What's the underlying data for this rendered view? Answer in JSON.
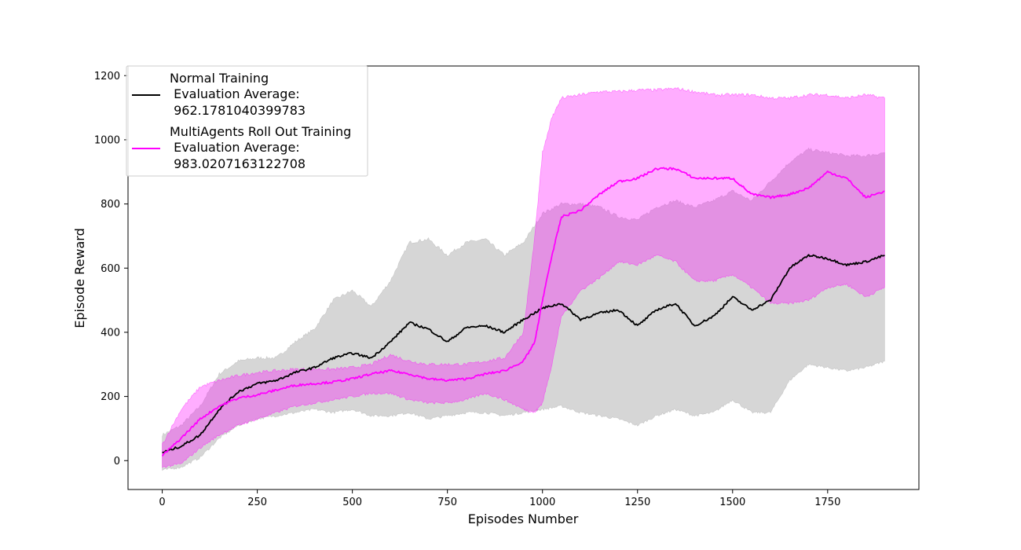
{
  "chart_data": {
    "type": "line",
    "title": "",
    "xlabel": "Episodes Number",
    "ylabel": "Episode Reward",
    "xlim": [
      -90,
      1990
    ],
    "ylim": [
      -90,
      1230
    ],
    "xticks": [
      0,
      250,
      500,
      750,
      1000,
      1250,
      1500,
      1750
    ],
    "yticks": [
      0,
      200,
      400,
      600,
      800,
      1000,
      1200
    ],
    "grid": false,
    "legend_position": "top-left",
    "series": [
      {
        "name": "Normal Training\n Evaluation Average:\n 962.1781040399783",
        "color": "#000000",
        "band_color": "#a9a9a9",
        "x": [
          0,
          50,
          100,
          150,
          200,
          250,
          300,
          350,
          400,
          450,
          500,
          550,
          600,
          650,
          700,
          750,
          800,
          850,
          900,
          950,
          1000,
          1050,
          1100,
          1150,
          1200,
          1250,
          1300,
          1350,
          1400,
          1450,
          1500,
          1550,
          1600,
          1650,
          1700,
          1750,
          1800,
          1850,
          1900
        ],
        "mean": [
          25,
          45,
          80,
          160,
          215,
          240,
          250,
          275,
          290,
          320,
          335,
          320,
          370,
          430,
          410,
          370,
          415,
          420,
          400,
          440,
          475,
          490,
          440,
          460,
          470,
          420,
          470,
          490,
          420,
          450,
          510,
          470,
          500,
          600,
          640,
          630,
          610,
          620,
          640
        ],
        "upper": [
          80,
          110,
          170,
          270,
          310,
          320,
          320,
          370,
          410,
          500,
          530,
          480,
          560,
          680,
          690,
          640,
          680,
          690,
          640,
          680,
          770,
          800,
          800,
          790,
          760,
          750,
          790,
          810,
          790,
          810,
          840,
          810,
          870,
          930,
          970,
          960,
          950,
          950,
          960
        ],
        "lower": [
          -30,
          -20,
          10,
          70,
          110,
          130,
          140,
          150,
          160,
          150,
          160,
          140,
          140,
          150,
          130,
          140,
          150,
          150,
          140,
          150,
          160,
          170,
          150,
          140,
          130,
          110,
          140,
          160,
          140,
          150,
          190,
          150,
          150,
          250,
          300,
          290,
          280,
          290,
          310
        ]
      },
      {
        "name": "MultiAgents Roll Out Training\n Evaluation Average:\n 983.0207163122708",
        "color": "#ff00ff",
        "band_color": "#ff00ff",
        "x": [
          0,
          50,
          100,
          150,
          200,
          250,
          300,
          350,
          400,
          450,
          500,
          550,
          600,
          650,
          700,
          750,
          800,
          850,
          900,
          950,
          980,
          1000,
          1025,
          1050,
          1100,
          1150,
          1200,
          1250,
          1300,
          1350,
          1400,
          1450,
          1500,
          1550,
          1600,
          1650,
          1700,
          1750,
          1800,
          1850,
          1900
        ],
        "mean": [
          15,
          70,
          130,
          170,
          195,
          205,
          220,
          235,
          240,
          245,
          255,
          270,
          280,
          270,
          255,
          250,
          255,
          270,
          280,
          310,
          370,
          500,
          640,
          760,
          780,
          830,
          870,
          880,
          910,
          910,
          880,
          880,
          880,
          830,
          820,
          830,
          850,
          900,
          880,
          820,
          840
        ],
        "upper": [
          50,
          160,
          230,
          250,
          265,
          275,
          280,
          285,
          285,
          285,
          290,
          300,
          330,
          310,
          300,
          300,
          300,
          310,
          320,
          400,
          700,
          960,
          1070,
          1130,
          1140,
          1150,
          1150,
          1155,
          1155,
          1160,
          1150,
          1140,
          1140,
          1140,
          1130,
          1130,
          1140,
          1140,
          1130,
          1140,
          1130
        ],
        "lower": [
          -20,
          -10,
          40,
          80,
          110,
          130,
          150,
          170,
          180,
          190,
          200,
          210,
          210,
          190,
          180,
          180,
          190,
          210,
          190,
          160,
          150,
          180,
          300,
          450,
          530,
          570,
          620,
          610,
          640,
          620,
          560,
          560,
          580,
          540,
          490,
          490,
          500,
          540,
          550,
          510,
          540
        ]
      }
    ]
  }
}
